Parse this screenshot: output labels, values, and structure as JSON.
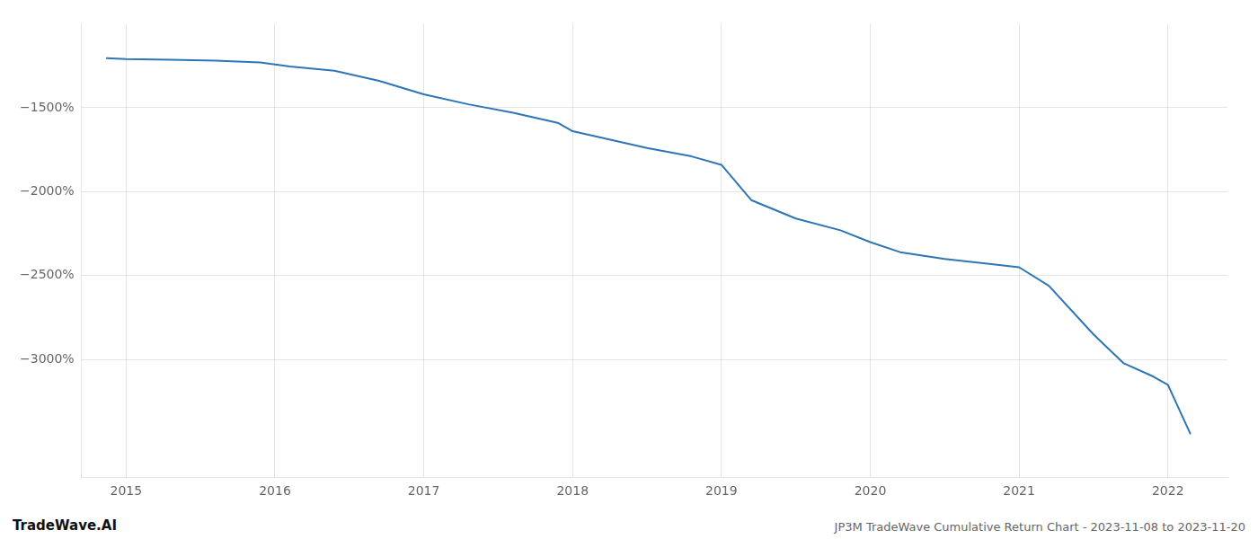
{
  "chart_data": {
    "type": "line",
    "title": "JP3M TradeWave Cumulative Return Chart - 2023-11-08 to 2023-11-20",
    "annotations": [
      "TradeWave.AI"
    ],
    "x": [
      2014.87,
      2015.0,
      2015.3,
      2015.6,
      2015.9,
      2016.1,
      2016.4,
      2016.7,
      2017.0,
      2017.3,
      2017.6,
      2017.9,
      2018.0,
      2018.2,
      2018.5,
      2018.8,
      2019.0,
      2019.2,
      2019.5,
      2019.8,
      2020.0,
      2020.2,
      2020.5,
      2020.8,
      2021.0,
      2021.2,
      2021.5,
      2021.7,
      2021.9,
      2022.0,
      2022.15
    ],
    "values": [
      -1205,
      -1210,
      -1215,
      -1220,
      -1230,
      -1255,
      -1280,
      -1340,
      -1420,
      -1480,
      -1530,
      -1590,
      -1640,
      -1680,
      -1740,
      -1790,
      -1840,
      -2050,
      -2160,
      -2230,
      -2300,
      -2360,
      -2400,
      -2430,
      -2450,
      -2560,
      -2850,
      -3020,
      -3100,
      -3150,
      -3440
    ],
    "color": "#2e75b6",
    "xlim": [
      2014.7,
      2022.4
    ],
    "xticks": [
      2015,
      2016,
      2017,
      2018,
      2019,
      2020,
      2021,
      2022
    ],
    "ylim": [
      -3700,
      -1000
    ],
    "yticks": [
      {
        "value": -3000,
        "label": "−3000%"
      },
      {
        "value": -2500,
        "label": "−2500%"
      },
      {
        "value": -2000,
        "label": "−2000%"
      },
      {
        "value": -1500,
        "label": "−1500%"
      }
    ],
    "grid": true
  }
}
